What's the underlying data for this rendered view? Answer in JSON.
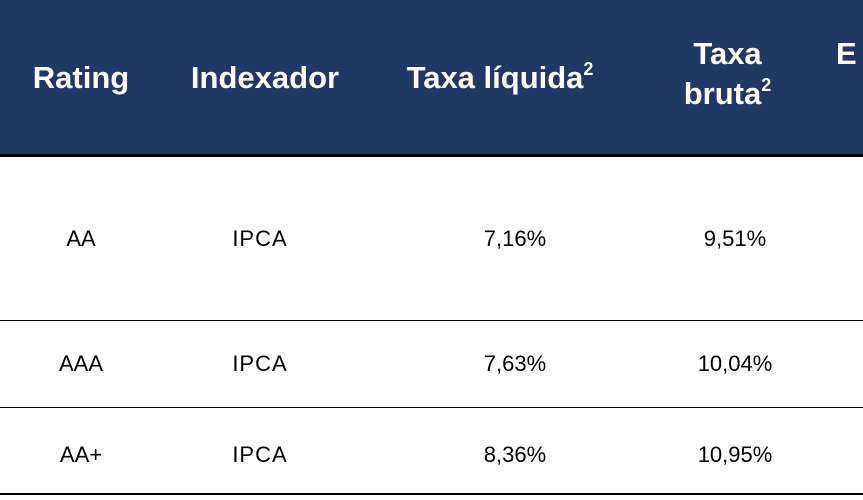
{
  "header": {
    "rating": "Rating",
    "indexador": "Indexador",
    "taxa_liquida": "Taxa líquida",
    "taxa_liquida_note": "2",
    "taxa_bruta_line1": "Taxa",
    "taxa_bruta_line2": "bruta",
    "taxa_bruta_note": "2",
    "partial_column": "E"
  },
  "rows": [
    {
      "rating": "AA",
      "indexador": "IPCA",
      "taxa_liquida": "7,16%",
      "taxa_bruta": "9,51%"
    },
    {
      "rating": "AAA",
      "indexador": "IPCA",
      "taxa_liquida": "7,63%",
      "taxa_bruta": "10,04%"
    },
    {
      "rating": "AA+",
      "indexador": "IPCA",
      "taxa_liquida": "8,36%",
      "taxa_bruta": "10,95%"
    }
  ],
  "colors": {
    "header_background": "#203864",
    "header_text": "#ffffff",
    "body_text": "#000000",
    "rule": "#000000"
  }
}
